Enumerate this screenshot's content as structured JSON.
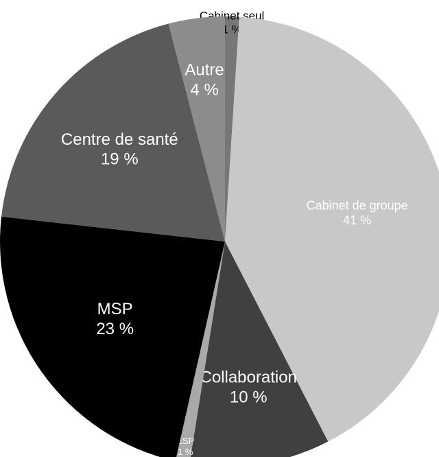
{
  "chart_data": {
    "type": "pie",
    "categories": [
      "Cabinet seul",
      "Cabinet de groupe",
      "Collaboration",
      "ESP",
      "MSP",
      "Centre de santé",
      "Autre"
    ],
    "values": [
      1,
      41,
      10,
      1,
      23,
      19,
      4
    ],
    "value_labels": [
      "1 %",
      "41 %",
      "10 %",
      "1 %",
      "23 %",
      "19 %",
      "4 %"
    ],
    "colors": [
      "#777777",
      "#c8c8c8",
      "#404040",
      "#a9a9a9",
      "#000000",
      "#5a5a5a",
      "#8c8c8c"
    ]
  }
}
